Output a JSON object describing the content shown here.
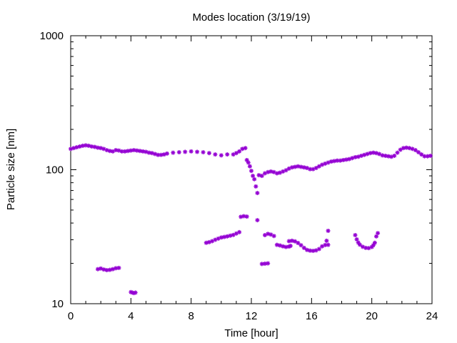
{
  "chart_data": {
    "type": "scatter",
    "title": "Modes location (3/19/19)",
    "xlabel": "Time [hour]",
    "ylabel": "Particle size [nm]",
    "xlim": [
      0,
      24
    ],
    "ylim": [
      10,
      1000
    ],
    "y_scale": "log",
    "grid": false,
    "legend": "none",
    "marker_color": "#9400d3",
    "x_ticks": [
      0,
      4,
      8,
      12,
      16,
      20,
      24
    ],
    "x_tick_labels": [
      "0",
      "4",
      "8",
      "12",
      "16",
      "20",
      "24"
    ],
    "y_ticks": [
      10,
      100,
      1000
    ],
    "y_tick_labels": [
      "10",
      "100",
      "1000"
    ],
    "series": [
      {
        "points": [
          [
            0.0,
            143
          ],
          [
            0.2,
            145
          ],
          [
            0.4,
            147
          ],
          [
            0.6,
            149
          ],
          [
            0.8,
            151
          ],
          [
            1.0,
            152
          ],
          [
            1.2,
            151
          ],
          [
            1.4,
            149
          ],
          [
            1.6,
            148
          ],
          [
            1.8,
            146
          ],
          [
            2.0,
            145
          ],
          [
            2.2,
            143
          ],
          [
            2.4,
            140
          ],
          [
            2.6,
            138
          ],
          [
            2.8,
            137
          ],
          [
            3.0,
            140
          ],
          [
            3.2,
            139
          ],
          [
            3.4,
            137
          ],
          [
            3.6,
            137
          ],
          [
            3.8,
            138
          ],
          [
            4.0,
            139
          ],
          [
            4.2,
            140
          ],
          [
            4.4,
            139
          ],
          [
            4.6,
            138
          ],
          [
            4.8,
            137
          ],
          [
            5.0,
            136
          ],
          [
            5.2,
            134
          ],
          [
            5.4,
            133
          ],
          [
            5.6,
            131
          ],
          [
            5.8,
            129
          ],
          [
            6.0,
            129
          ],
          [
            6.2,
            130
          ],
          [
            6.4,
            132
          ],
          [
            6.8,
            134
          ],
          [
            7.2,
            135
          ],
          [
            7.6,
            136
          ],
          [
            8.0,
            137
          ],
          [
            8.4,
            136
          ],
          [
            8.8,
            135
          ],
          [
            9.2,
            133
          ],
          [
            9.6,
            130
          ],
          [
            10.0,
            128
          ],
          [
            10.4,
            130
          ],
          [
            10.8,
            130
          ],
          [
            11.0,
            133
          ],
          [
            11.2,
            137
          ],
          [
            11.4,
            143
          ],
          [
            11.6,
            145
          ],
          [
            11.7,
            118
          ],
          [
            11.8,
            113
          ],
          [
            11.9,
            106
          ],
          [
            12.0,
            98
          ],
          [
            12.1,
            90
          ],
          [
            12.2,
            85
          ],
          [
            12.3,
            75
          ],
          [
            12.4,
            67
          ],
          [
            12.5,
            91
          ],
          [
            12.7,
            90
          ],
          [
            12.9,
            94
          ],
          [
            13.1,
            96
          ],
          [
            13.3,
            97
          ],
          [
            13.5,
            96
          ],
          [
            13.7,
            94
          ],
          [
            13.9,
            95
          ],
          [
            14.1,
            97
          ],
          [
            14.3,
            99
          ],
          [
            14.5,
            102
          ],
          [
            14.7,
            104
          ],
          [
            14.9,
            105
          ],
          [
            15.1,
            106
          ],
          [
            15.3,
            105
          ],
          [
            15.5,
            104
          ],
          [
            15.7,
            103
          ],
          [
            15.9,
            101
          ],
          [
            16.1,
            101
          ],
          [
            16.3,
            103
          ],
          [
            16.5,
            106
          ],
          [
            16.7,
            109
          ],
          [
            16.9,
            111
          ],
          [
            17.1,
            113
          ],
          [
            17.3,
            115
          ],
          [
            17.5,
            116
          ],
          [
            17.7,
            117
          ],
          [
            17.9,
            117
          ],
          [
            18.1,
            118
          ],
          [
            18.3,
            119
          ],
          [
            18.5,
            120
          ],
          [
            18.7,
            122
          ],
          [
            18.9,
            124
          ],
          [
            19.1,
            125
          ],
          [
            19.3,
            127
          ],
          [
            19.5,
            129
          ],
          [
            19.7,
            131
          ],
          [
            19.9,
            133
          ],
          [
            20.1,
            134
          ],
          [
            20.3,
            133
          ],
          [
            20.5,
            131
          ],
          [
            20.7,
            128
          ],
          [
            20.9,
            127
          ],
          [
            21.1,
            126
          ],
          [
            21.3,
            125
          ],
          [
            21.5,
            127
          ],
          [
            21.7,
            134
          ],
          [
            21.9,
            141
          ],
          [
            22.1,
            145
          ],
          [
            22.3,
            146
          ],
          [
            22.5,
            145
          ],
          [
            22.7,
            143
          ],
          [
            22.9,
            140
          ],
          [
            23.1,
            135
          ],
          [
            23.3,
            130
          ],
          [
            23.5,
            126
          ],
          [
            23.7,
            126
          ],
          [
            23.9,
            127
          ],
          [
            1.8,
            18.1
          ],
          [
            2.0,
            18.3
          ],
          [
            2.2,
            18.0
          ],
          [
            2.4,
            17.8
          ],
          [
            2.6,
            17.9
          ],
          [
            2.8,
            18.1
          ],
          [
            3.0,
            18.4
          ],
          [
            3.2,
            18.5
          ],
          [
            4.0,
            12.2
          ],
          [
            4.1,
            12.1
          ],
          [
            4.2,
            12.0
          ],
          [
            4.3,
            12.1
          ],
          [
            9.0,
            28.5
          ],
          [
            9.2,
            28.8
          ],
          [
            9.4,
            29.3
          ],
          [
            9.6,
            30.0
          ],
          [
            9.8,
            30.6
          ],
          [
            10.0,
            31.2
          ],
          [
            10.2,
            31.5
          ],
          [
            10.4,
            31.8
          ],
          [
            10.6,
            32.2
          ],
          [
            10.8,
            32.6
          ],
          [
            11.0,
            33.4
          ],
          [
            11.2,
            34.2
          ],
          [
            11.3,
            44.5
          ],
          [
            11.5,
            45.0
          ],
          [
            11.7,
            44.7
          ],
          [
            12.4,
            42.0
          ],
          [
            12.7,
            19.8
          ],
          [
            12.9,
            19.9
          ],
          [
            13.1,
            20.0
          ],
          [
            12.9,
            32.5
          ],
          [
            13.1,
            33.2
          ],
          [
            13.3,
            32.8
          ],
          [
            13.5,
            32.0
          ],
          [
            13.7,
            27.5
          ],
          [
            13.9,
            27.2
          ],
          [
            14.1,
            26.8
          ],
          [
            14.3,
            26.5
          ],
          [
            14.5,
            26.7
          ],
          [
            14.6,
            27.0
          ],
          [
            14.5,
            29.3
          ],
          [
            14.7,
            29.5
          ],
          [
            14.9,
            29.2
          ],
          [
            15.1,
            28.4
          ],
          [
            15.3,
            27.3
          ],
          [
            15.5,
            26.1
          ],
          [
            15.7,
            25.2
          ],
          [
            15.9,
            24.9
          ],
          [
            16.1,
            24.8
          ],
          [
            16.3,
            25.0
          ],
          [
            16.5,
            25.6
          ],
          [
            16.7,
            26.8
          ],
          [
            16.9,
            27.4
          ],
          [
            17.1,
            27.5
          ],
          [
            17.0,
            29.5
          ],
          [
            17.1,
            35.0
          ],
          [
            18.9,
            32.5
          ],
          [
            19.0,
            30.2
          ],
          [
            19.1,
            28.6
          ],
          [
            19.2,
            27.6
          ],
          [
            19.4,
            26.6
          ],
          [
            19.6,
            26.1
          ],
          [
            19.8,
            26.0
          ],
          [
            20.0,
            26.5
          ],
          [
            20.1,
            27.3
          ],
          [
            20.2,
            28.5
          ],
          [
            20.3,
            31.8
          ],
          [
            20.4,
            33.6
          ]
        ]
      }
    ]
  }
}
